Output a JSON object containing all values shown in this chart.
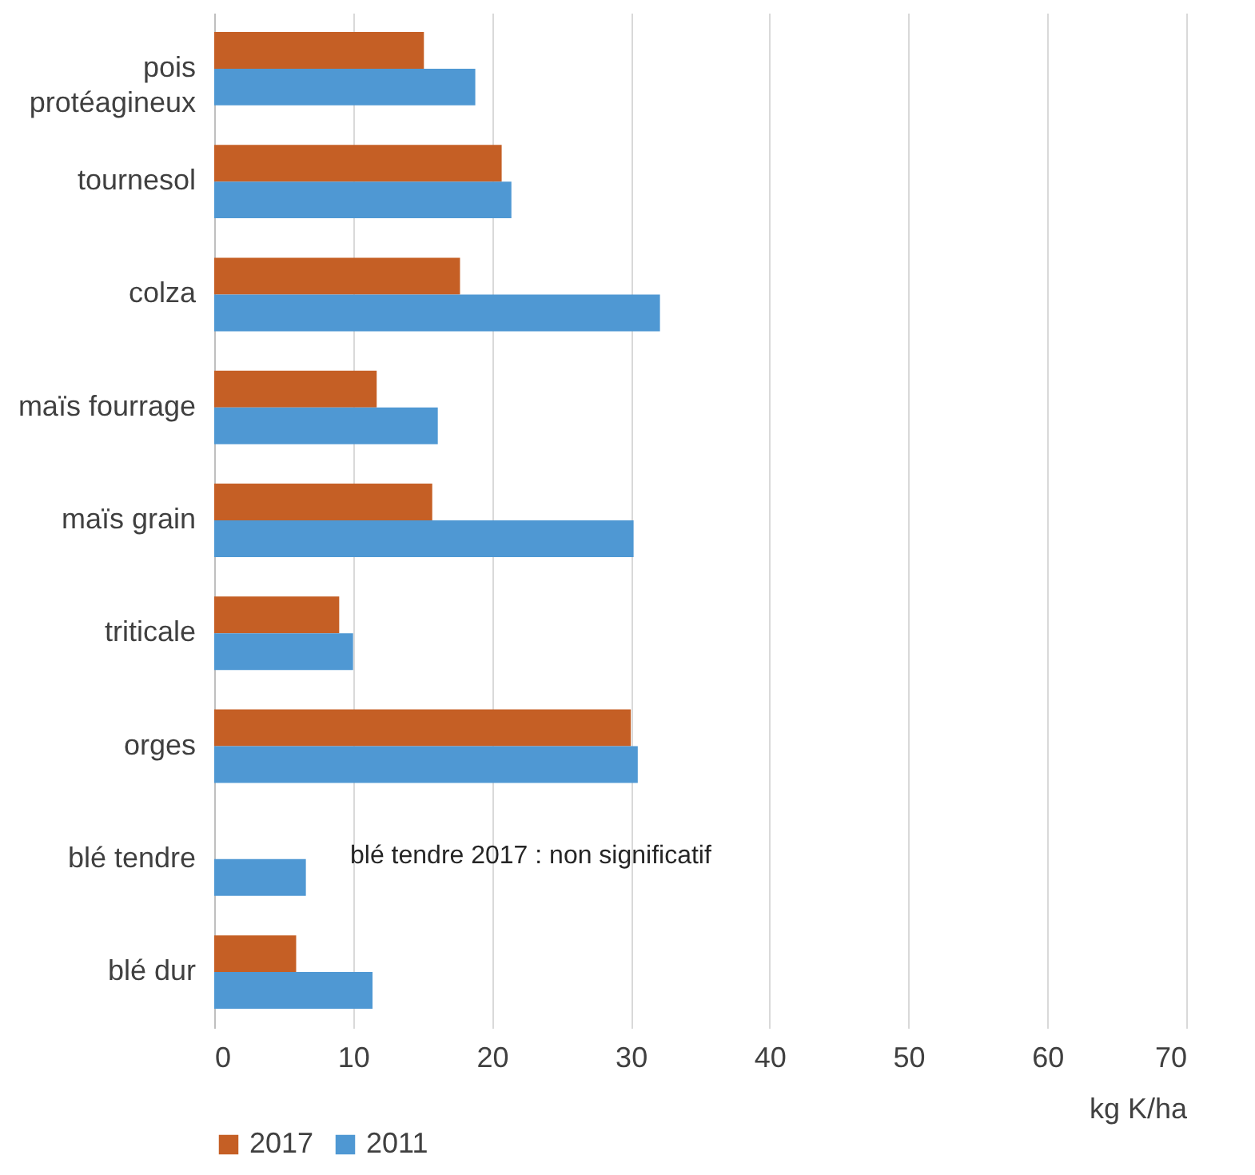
{
  "chart_data": {
    "type": "bar",
    "orientation": "horizontal",
    "categories": [
      "pois protéagineux",
      "tournesol",
      "colza",
      "maïs fourrage",
      "maïs grain",
      "triticale",
      "orges",
      "blé tendre",
      "blé dur"
    ],
    "series": [
      {
        "name": "2017",
        "color": "#c55f25",
        "values": [
          15.1,
          20.7,
          17.7,
          11.7,
          15.7,
          9.0,
          30.0,
          null,
          5.9
        ]
      },
      {
        "name": "2011",
        "color": "#4f98d3",
        "values": [
          18.8,
          21.4,
          32.1,
          16.1,
          30.2,
          10.0,
          30.5,
          6.6,
          11.4
        ]
      }
    ],
    "xlim": [
      0,
      70
    ],
    "xticks": [
      0,
      10,
      20,
      30,
      40,
      50,
      60,
      70
    ],
    "xlabel": "kg K/ha",
    "grid": "x",
    "legend": "bottom",
    "annotations": [
      "blé tendre 2017 : non significatif"
    ]
  }
}
